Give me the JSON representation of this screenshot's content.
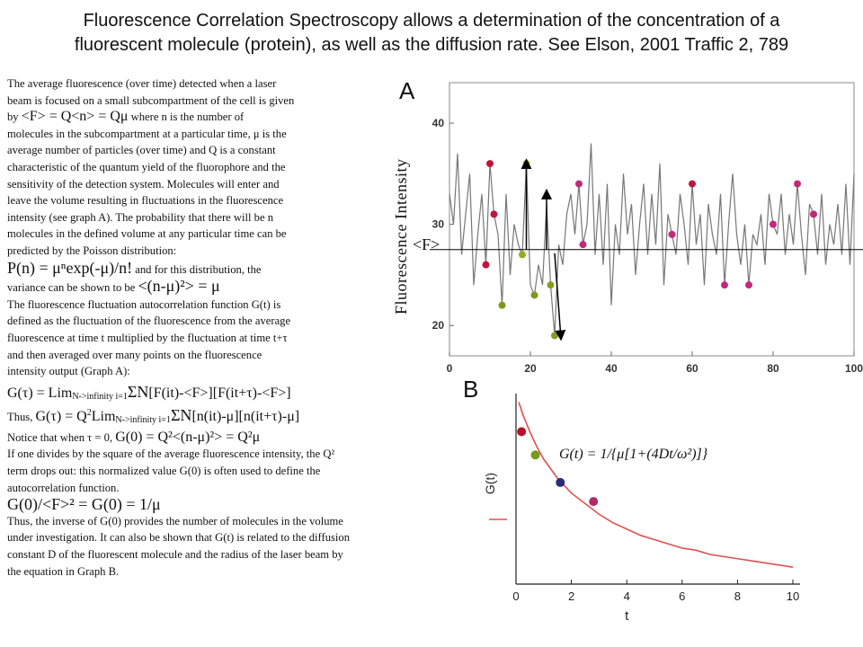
{
  "title_line1": "Fluorescence Correlation Spectroscopy allows a determination of the concentration of a",
  "title_line2": "fluorescent molecule (protein), as well as the diffusion rate. See Elson, 2001 Traffic 2, 789",
  "text": {
    "p1a": "The average fluorescence (over time) detected when a laser",
    "p1b": "beam is focused on a small subcompartment of the cell is given",
    "p1c_by": "by",
    "p1c_eq": "<F> = Q<n> = Qμ",
    "p1c_rest": "where n is the number of",
    "p1d": "molecules in the subcompartment at a particular time, μ is the",
    "p1e": "average number of particles (over time) and Q is a constant",
    "p1f": "characteristic of the quantum yield of the fluorophore and the",
    "p1g": "sensitivity of the detection system.  Molecules will enter and",
    "p1h": "leave the volume resulting in fluctuations in the fluorescence",
    "p1i": "intensity (see graph A).  The probability that there will be n",
    "p1j": "molecules in the defined volume at any particular time can be",
    "p1k": "predicted by the Poisson distribution:",
    "poisson_eq": "P(n) = μⁿexp(-μ)/n!",
    "poisson_rest": "and for this distribution, the",
    "variance_a": "variance can be shown to be",
    "variance_eq": "<(n-μ)²> = μ",
    "p2a": "The fluorescence fluctuation autocorrelation function G(t) is",
    "p2b": "defined as the fluctuation of the fluorescence from the average",
    "p2c": "fluorescence at time t multiplied by the fluctuation at time t+τ",
    "p2d": "and then averaged over many points on the fluorescence",
    "p2e": "intensity output (Graph A):",
    "g_eq_a": "G(τ) = Lim",
    "g_eq_sub": "N->infinity i=1",
    "g_eq_sigma": "ΣN",
    "g_eq_b": "[F(it)-<F>][F(it+τ)-<F>]",
    "thus_a": "Thus,",
    "thus_eq_a": "G(τ) = Q",
    "thus_eq_sup": "2",
    "thus_eq_lim": "Lim",
    "thus_eq_sub": "N->infinity  i=1",
    "thus_eq_sigma": "ΣN",
    "thus_eq_b": "[n(it)-μ][n(it+τ)-μ]",
    "notice_a": "Notice that when τ = 0,",
    "notice_eq": "G(0) = Q²<(n-μ)²> = Q²μ",
    "p3a": "If one divides by the square of the average fluorescence intensity, the Q²",
    "p3b": "term drops out: this normalized value G(0) is often used to define the",
    "p3c": "autocorrelation function.",
    "g0_eq": "G(0)/<F>² = G(0) = 1/μ",
    "p4a": "Thus, the inverse of G(0) provides the number of molecules in the volume",
    "p4b": "under investigation.  It can also be shown that G(t) is related to the diffusion",
    "p4c": "constant D of the fluorescent molecule and the radius of the laser beam by",
    "p4d": "the equation in Graph B."
  },
  "graph_a": {
    "panel_label": "A",
    "y_axis_label": "Fluorescence Intensity",
    "mean_label": "<F>",
    "x_ticks": [
      "0",
      "20",
      "40",
      "60",
      "80",
      "100"
    ],
    "y_ticks": [
      "20",
      "30",
      "40"
    ]
  },
  "graph_b": {
    "panel_label": "B",
    "formula": "G(t) = 1/{μ[1+(4Dt/ω²)]}",
    "y_axis_label": "G(t)",
    "x_axis_label": "t",
    "x_ticks": [
      "0",
      "2",
      "4",
      "6",
      "8",
      "10"
    ]
  },
  "chart_data": [
    {
      "type": "line",
      "title": "A",
      "xlabel": "",
      "ylabel": "Fluorescence Intensity",
      "xlim": [
        0,
        100
      ],
      "ylim": [
        17,
        44
      ],
      "mean_line": 27.5,
      "x": [
        0,
        1,
        2,
        3,
        4,
        5,
        6,
        7,
        8,
        9,
        10,
        11,
        12,
        13,
        14,
        15,
        16,
        17,
        18,
        19,
        20,
        21,
        22,
        23,
        24,
        25,
        26,
        27,
        28,
        29,
        30,
        31,
        32,
        33,
        34,
        35,
        36,
        37,
        38,
        39,
        40,
        41,
        42,
        43,
        44,
        45,
        46,
        47,
        48,
        49,
        50,
        51,
        52,
        53,
        54,
        55,
        56,
        57,
        58,
        59,
        60,
        61,
        62,
        63,
        64,
        65,
        66,
        67,
        68,
        69,
        70,
        71,
        72,
        73,
        74,
        75,
        76,
        77,
        78,
        79,
        80,
        81,
        82,
        83,
        84,
        85,
        86,
        87,
        88,
        89,
        90,
        91,
        92,
        93,
        94,
        95,
        96,
        97,
        98,
        99,
        100
      ],
      "values": [
        33,
        30,
        37,
        27,
        31,
        35,
        24,
        29,
        33,
        26,
        36,
        31,
        29,
        22,
        33,
        25,
        30,
        28,
        27,
        36,
        24,
        23,
        26,
        24,
        32,
        24,
        19,
        28,
        26,
        31,
        33,
        29,
        34,
        28,
        30,
        38,
        27,
        33,
        26,
        34,
        22,
        30,
        27,
        35,
        29,
        32,
        25,
        30,
        34,
        27,
        33,
        28,
        36,
        24,
        31,
        29,
        27,
        33,
        30,
        26,
        34,
        28,
        31,
        24,
        32,
        29,
        27,
        33,
        24,
        30,
        35,
        29,
        26,
        30,
        24,
        29,
        28,
        31,
        26,
        33,
        30,
        29,
        33,
        27,
        31,
        28,
        34,
        29,
        25,
        32,
        31,
        27,
        33,
        26,
        30,
        28,
        32,
        27,
        34,
        26,
        35
      ],
      "colors": {
        "line": "#777777",
        "mean": "#000000"
      }
    },
    {
      "type": "line",
      "title": "B",
      "xlabel": "t",
      "ylabel": "G(t)",
      "xlim": [
        0,
        10
      ],
      "x": [
        0.1,
        0.25,
        0.5,
        0.75,
        1,
        1.5,
        2,
        2.5,
        3,
        3.5,
        4,
        4.5,
        5,
        5.5,
        6,
        6.5,
        7,
        7.5,
        8,
        8.5,
        9,
        9.5,
        10
      ],
      "values": [
        0.96,
        0.9,
        0.82,
        0.75,
        0.69,
        0.6,
        0.53,
        0.48,
        0.43,
        0.39,
        0.36,
        0.33,
        0.31,
        0.29,
        0.27,
        0.26,
        0.24,
        0.23,
        0.22,
        0.21,
        0.2,
        0.19,
        0.18
      ],
      "highlighted_points": [
        {
          "x": 0.2,
          "y": 0.82,
          "color": "#b8102a"
        },
        {
          "x": 0.7,
          "y": 0.71,
          "color": "#7a9a1e"
        },
        {
          "x": 1.6,
          "y": 0.58,
          "color": "#2a2c7a"
        },
        {
          "x": 2.8,
          "y": 0.49,
          "color": "#b02a6a"
        }
      ],
      "colors": {
        "curve": "#e05050"
      }
    }
  ]
}
